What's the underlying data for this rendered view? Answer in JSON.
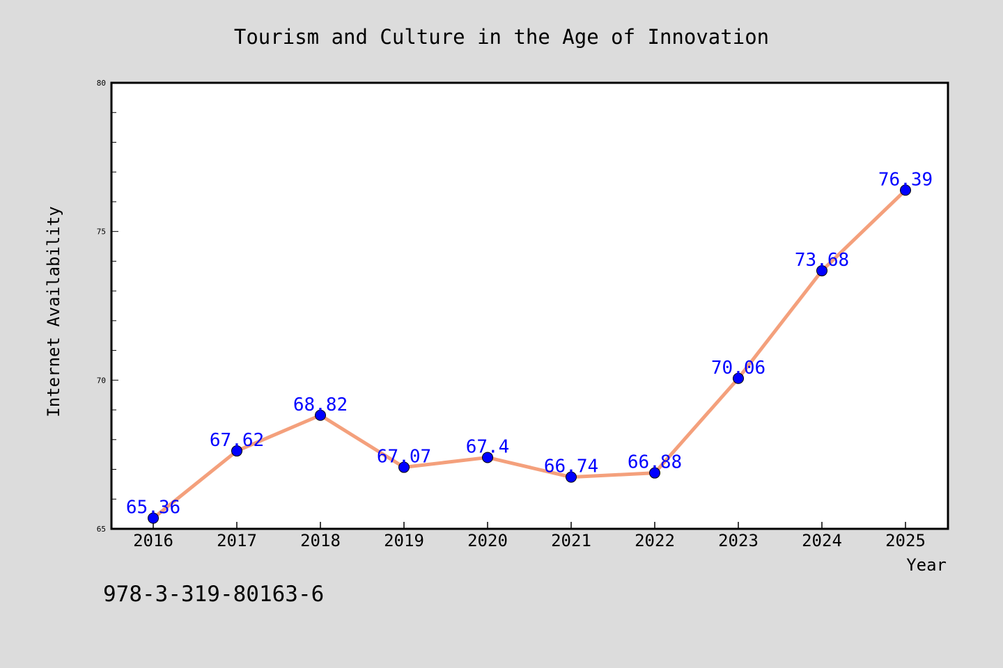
{
  "colors": {
    "background": "#dcdcdc",
    "plot_background": "#ffffff",
    "line": "#f4a07c",
    "marker": "#0000ff",
    "data_label": "#0000ff",
    "text": "#000000"
  },
  "footnote": "978-3-319-80163-6",
  "chart_data": {
    "type": "line",
    "title": "Tourism and Culture in the Age of Innovation",
    "xlabel": "Year",
    "ylabel": "Internet Availability",
    "categories": [
      "2016",
      "2017",
      "2018",
      "2019",
      "2020",
      "2021",
      "2022",
      "2023",
      "2024",
      "2025"
    ],
    "series": [
      {
        "values": [
          65.36,
          67.62,
          68.82,
          67.07,
          67.4,
          66.74,
          66.88,
          70.06,
          73.68,
          76.39
        ],
        "labels": [
          "65.36",
          "67.62",
          "68.82",
          "67.07",
          "67.4",
          "66.74",
          "66.88",
          "70.06",
          "73.68",
          "76.39"
        ]
      }
    ],
    "ylim": [
      65,
      80
    ],
    "yticks": [
      "65",
      "70",
      "75",
      "80"
    ],
    "y_minor_step": 1,
    "grid": false,
    "legend": "none"
  }
}
